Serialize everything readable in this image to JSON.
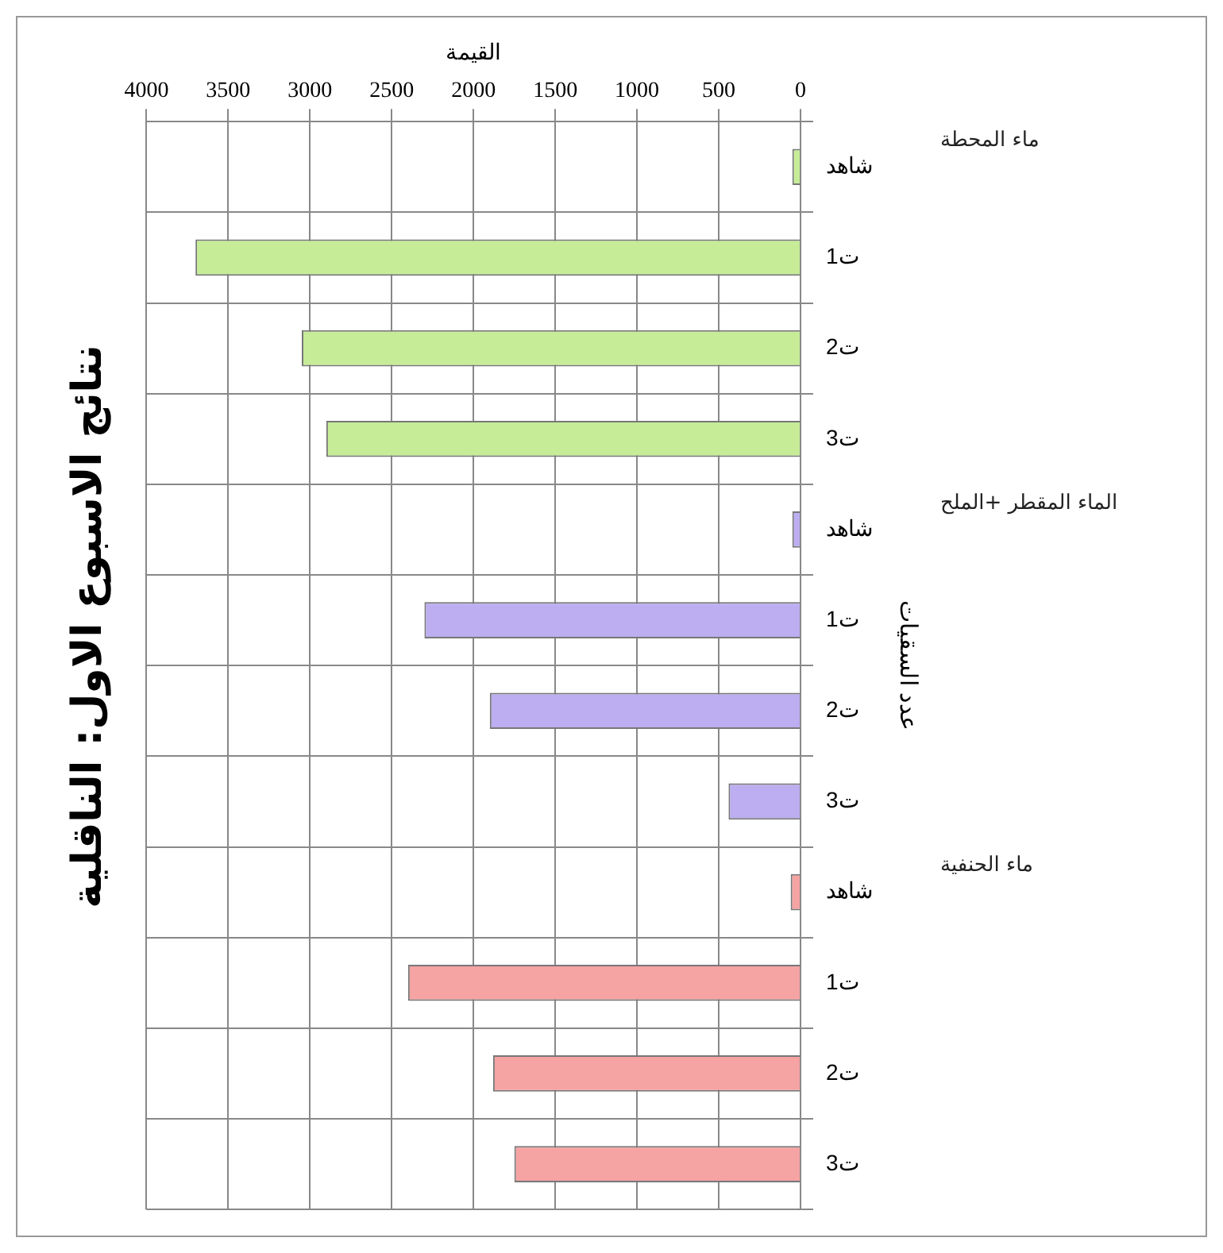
{
  "chart_data": {
    "type": "bar",
    "orientation": "horizontal",
    "title": "نتائج الاسبوع الاول: الناقلية",
    "xlabel": "القيمة",
    "ylabel": "عدد السقيات",
    "categories": [
      "شاهد",
      "ت1",
      "ت2",
      "ت3",
      "شاهد",
      "ت1",
      "ت2",
      "ت3",
      "شاهد",
      "ت1",
      "ت2",
      "ت3"
    ],
    "values": [
      50,
      3700,
      3050,
      2900,
      50,
      2300,
      1900,
      440,
      60,
      2400,
      1880,
      1750
    ],
    "colors": [
      "#c6ec98",
      "#c6ec98",
      "#c6ec98",
      "#c6ec98",
      "#bcaef0",
      "#bcaef0",
      "#bcaef0",
      "#bcaef0",
      "#f5a3a3",
      "#f5a3a3",
      "#f5a3a3",
      "#f5a3a3"
    ],
    "xlim": [
      4000,
      0
    ],
    "xticks": [
      0,
      500,
      1000,
      1500,
      2000,
      2500,
      3000,
      3500,
      4000
    ],
    "grid": true,
    "legend": false,
    "annotations": [
      "ماء المحطة",
      "الماء المقطر +الملح",
      "ماء الحنفية"
    ]
  }
}
